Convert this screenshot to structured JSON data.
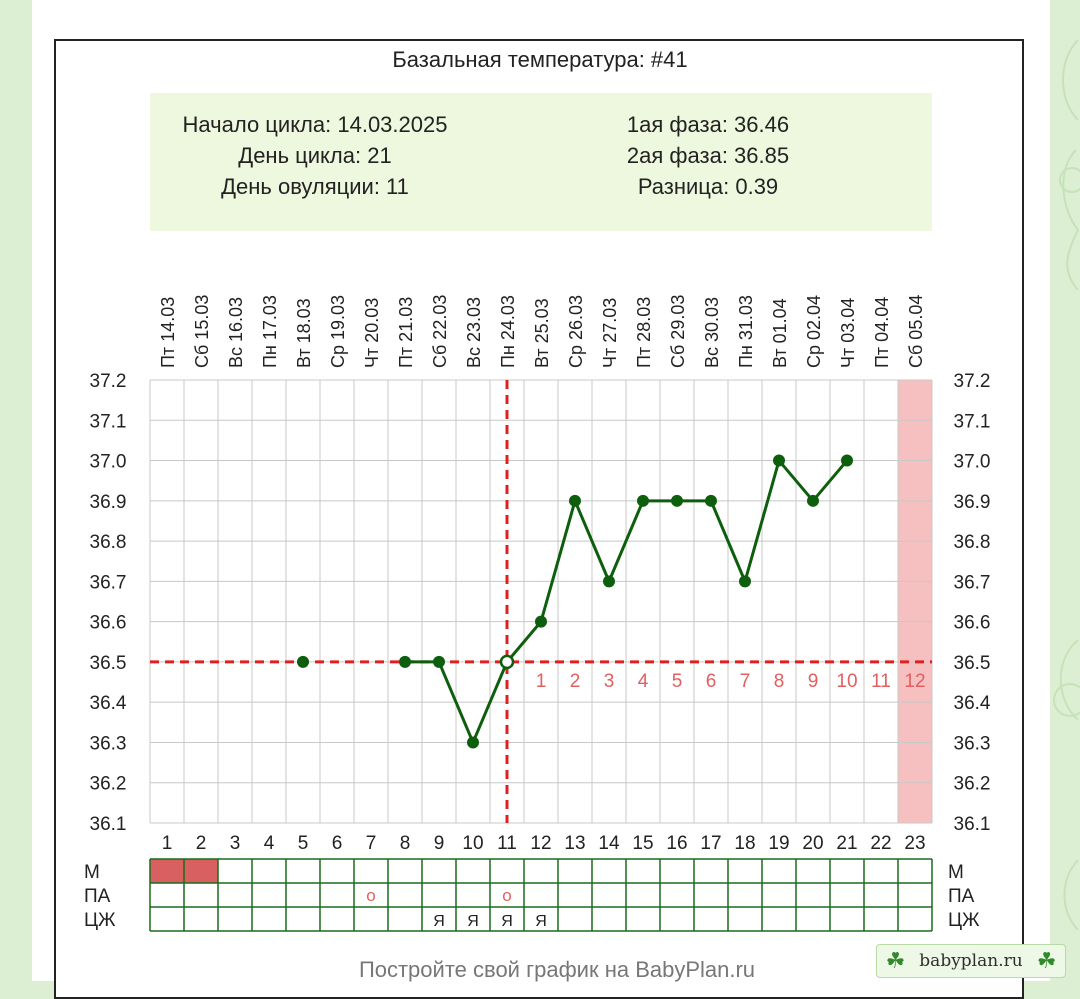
{
  "chart_data": {
    "type": "line",
    "title": "Базальная температура: #41",
    "summary": {
      "cycle_start": "Начало цикла: 14.03.2025",
      "cycle_day": "День цикла: 21",
      "ovulation_day": "День овуляции: 11",
      "phase1": "1ая фаза: 36.46",
      "phase2": "2ая фаза: 36.85",
      "difference": "Разница: 0.39"
    },
    "days": [
      1,
      2,
      3,
      4,
      5,
      6,
      7,
      8,
      9,
      10,
      11,
      12,
      13,
      14,
      15,
      16,
      17,
      18,
      19,
      20,
      21,
      22,
      23
    ],
    "weekdays": [
      "Пт",
      "Сб",
      "Вс",
      "Пн",
      "Вт",
      "Ср",
      "Чт",
      "Пт",
      "Сб",
      "Вс",
      "Пн",
      "Вт",
      "Ср",
      "Чт",
      "Пт",
      "Сб",
      "Вс",
      "Пн",
      "Вт",
      "Ср",
      "Чт",
      "Пт",
      "Сб"
    ],
    "dates": [
      "14.03",
      "15.03",
      "16.03",
      "17.03",
      "18.03",
      "19.03",
      "20.03",
      "21.03",
      "22.03",
      "23.03",
      "24.03",
      "25.03",
      "26.03",
      "27.03",
      "28.03",
      "29.03",
      "30.03",
      "31.03",
      "01.04",
      "02.04",
      "03.04",
      "04.04",
      "05.04"
    ],
    "temperatures": [
      null,
      null,
      null,
      null,
      36.5,
      null,
      null,
      36.5,
      36.5,
      36.3,
      36.5,
      36.6,
      36.9,
      36.7,
      36.9,
      36.9,
      36.9,
      36.7,
      37.0,
      36.9,
      37.0,
      null,
      null
    ],
    "ylim": [
      36.1,
      37.2
    ],
    "yticks": [
      "37.2",
      "37.1",
      "37.0",
      "36.9",
      "36.8",
      "36.7",
      "36.6",
      "36.5",
      "36.4",
      "36.3",
      "36.2",
      "36.1"
    ],
    "coverline": 36.5,
    "ovulation_day_index": 11,
    "luteal_labels": [
      "1",
      "2",
      "3",
      "4",
      "5",
      "6",
      "7",
      "8",
      "9",
      "10",
      "11",
      "12"
    ],
    "highlight_day": 23,
    "grid": true,
    "colors": {
      "line": "#0d5e0d",
      "coverline": "#e02020",
      "highlight": "#f7c0c0",
      "grid": "#c8c8c8",
      "luteal_label": "#e06060",
      "menses": "#d96060",
      "marker_grid": "#1a6b1a"
    },
    "markers": {
      "row_labels": [
        "М",
        "ПА",
        "ЦЖ"
      ],
      "menses_days": [
        1,
        2
      ],
      "pa_days": [
        7,
        11
      ],
      "pa_symbol": "o",
      "cm_days": [
        9,
        10,
        11,
        12
      ],
      "cm_symbol": "Я"
    }
  },
  "footer_text": "Постройте свой график на BabyPlan.ru",
  "badge": {
    "text": "babyplan.ru",
    "icon": "clover-icon"
  }
}
